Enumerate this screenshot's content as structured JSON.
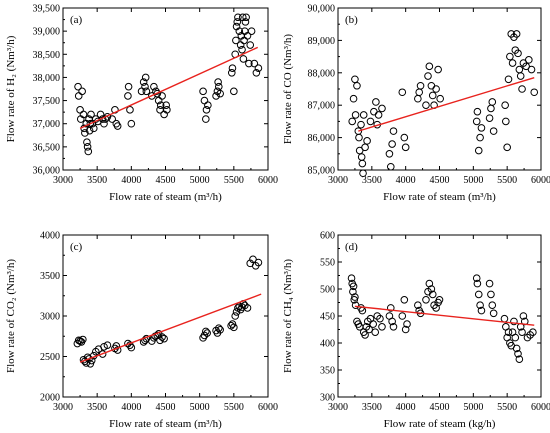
{
  "chart_data": [
    {
      "type": "scatter",
      "panel_label": "(a)",
      "xlabel": "Flow rate of steam (m³/h)",
      "ylabel": "Flow rate of H₂ (Nm³/h)",
      "xlim": [
        3000,
        6000
      ],
      "ylim": [
        36000,
        39500
      ],
      "x_ticks": [
        3000,
        3500,
        4000,
        4500,
        5000,
        5500,
        6000
      ],
      "y_ticks": [
        36000,
        36500,
        37000,
        37500,
        38000,
        38500,
        39000,
        39500
      ],
      "x_tick_labels": [
        "3000",
        "3500",
        "4000",
        "4500",
        "5000",
        "5500",
        "6000"
      ],
      "y_tick_labels": [
        "36,000",
        "36,500",
        "37,000",
        "37,500",
        "38,000",
        "38,500",
        "39,000",
        "39,500"
      ],
      "trend_line": {
        "x": [
          3250,
          5850
        ],
        "y": [
          36900,
          38650
        ],
        "color": "#e8231e"
      },
      "points": {
        "x": [
          3220,
          3230,
          3250,
          3260,
          3280,
          3300,
          3310,
          3320,
          3340,
          3350,
          3360,
          3370,
          3380,
          3390,
          3400,
          3410,
          3430,
          3450,
          3480,
          3510,
          3550,
          3580,
          3600,
          3620,
          3650,
          3720,
          3760,
          3780,
          3800,
          3950,
          3960,
          3980,
          4000,
          4150,
          4180,
          4200,
          4210,
          4220,
          4300,
          4330,
          4360,
          4380,
          4400,
          4420,
          4430,
          4450,
          4480,
          4510,
          4520,
          5050,
          5070,
          5090,
          5100,
          5120,
          5240,
          5260,
          5270,
          5280,
          5300,
          5470,
          5480,
          5500,
          5520,
          5530,
          5540,
          5550,
          5560,
          5580,
          5600,
          5610,
          5620,
          5630,
          5640,
          5650,
          5660,
          5670,
          5680,
          5700,
          5720,
          5740,
          5760,
          5800,
          5830,
          5860
        ],
        "y": [
          37800,
          37600,
          37300,
          37100,
          37700,
          37200,
          36900,
          36800,
          37000,
          36600,
          36500,
          36400,
          37100,
          36850,
          37000,
          37200,
          37000,
          36900,
          37100,
          37050,
          37200,
          37100,
          37000,
          37100,
          37150,
          37100,
          37300,
          37000,
          36950,
          37600,
          37800,
          37300,
          37000,
          37700,
          37900,
          37800,
          38000,
          37700,
          37600,
          37800,
          37700,
          37650,
          37500,
          37300,
          37400,
          37600,
          37200,
          37400,
          37300,
          37700,
          37500,
          37100,
          37300,
          37400,
          37600,
          37700,
          37900,
          37800,
          37650,
          38100,
          38200,
          37700,
          38500,
          38800,
          39100,
          39200,
          39300,
          39000,
          38700,
          38900,
          38600,
          39300,
          38400,
          38800,
          39000,
          39200,
          39300,
          38900,
          38300,
          38700,
          39000,
          38300,
          38100,
          38200
        ]
      }
    },
    {
      "type": "scatter",
      "panel_label": "(b)",
      "xlabel": "Flow rate of steam (m³/h)",
      "ylabel": "Flow rate of CO (Nm³/h)",
      "xlim": [
        3000,
        6000
      ],
      "ylim": [
        85000,
        90000
      ],
      "x_ticks": [
        3000,
        3500,
        4000,
        4500,
        5000,
        5500,
        6000
      ],
      "y_ticks": [
        85000,
        86000,
        87000,
        88000,
        89000,
        90000
      ],
      "x_tick_labels": [
        "3000",
        "3500",
        "4000",
        "4500",
        "5000",
        "5500",
        "6000"
      ],
      "y_tick_labels": [
        "85,000",
        "86,000",
        "87,000",
        "88,000",
        "89,000",
        "90,000"
      ],
      "trend_line": {
        "x": [
          3300,
          5900
        ],
        "y": [
          86200,
          87850
        ],
        "color": "#e8231e"
      },
      "points": {
        "x": [
          3210,
          3230,
          3250,
          3260,
          3280,
          3300,
          3310,
          3320,
          3340,
          3350,
          3360,
          3370,
          3380,
          3400,
          3430,
          3480,
          3530,
          3560,
          3580,
          3600,
          3650,
          3760,
          3780,
          3800,
          3820,
          3950,
          3980,
          4000,
          4180,
          4200,
          4220,
          4300,
          4330,
          4350,
          4380,
          4400,
          4420,
          4450,
          4480,
          4510,
          5050,
          5060,
          5080,
          5100,
          5120,
          5240,
          5260,
          5280,
          5300,
          5470,
          5480,
          5500,
          5520,
          5540,
          5560,
          5580,
          5600,
          5620,
          5640,
          5660,
          5680,
          5700,
          5720,
          5740,
          5780,
          5820,
          5860,
          5900
        ],
        "y": [
          86500,
          87200,
          87800,
          86700,
          87600,
          86200,
          86000,
          85600,
          86400,
          85400,
          85200,
          84900,
          86700,
          85700,
          85900,
          86500,
          86800,
          87100,
          86400,
          86700,
          86900,
          85500,
          85100,
          85800,
          86200,
          87400,
          86000,
          85700,
          87200,
          87400,
          87600,
          87000,
          87900,
          88200,
          87600,
          87300,
          87000,
          87500,
          88100,
          87200,
          86500,
          86800,
          85600,
          86000,
          86300,
          86600,
          86900,
          87100,
          86200,
          87000,
          86500,
          85700,
          87800,
          88500,
          89200,
          88300,
          89100,
          88700,
          89200,
          88600,
          88100,
          87900,
          87500,
          88300,
          88200,
          88400,
          88100,
          87400
        ]
      }
    },
    {
      "type": "scatter",
      "panel_label": "(c)",
      "xlabel": "Flow rate of steam (m³/h)",
      "ylabel": "Flow rate of CO₂ (Nm³/h)",
      "xlim": [
        3000,
        6000
      ],
      "ylim": [
        2000,
        4000
      ],
      "x_ticks": [
        3000,
        3500,
        4000,
        4500,
        5000,
        5500,
        6000
      ],
      "y_ticks": [
        2000,
        2500,
        3000,
        3500,
        4000
      ],
      "x_tick_labels": [
        "3000",
        "3500",
        "4000",
        "4500",
        "5000",
        "5500",
        "6000"
      ],
      "y_tick_labels": [
        "2000",
        "2500",
        "3000",
        "3500",
        "4000"
      ],
      "trend_line": {
        "x": [
          3250,
          5900
        ],
        "y": [
          2430,
          3270
        ],
        "color": "#e8231e"
      },
      "points": {
        "x": [
          3210,
          3230,
          3250,
          3270,
          3290,
          3300,
          3320,
          3340,
          3360,
          3380,
          3400,
          3420,
          3450,
          3480,
          3520,
          3580,
          3600,
          3650,
          3760,
          3780,
          3800,
          3950,
          3980,
          4000,
          4180,
          4200,
          4220,
          4300,
          4330,
          4350,
          4380,
          4400,
          4420,
          4450,
          4480,
          5050,
          5070,
          5090,
          5110,
          5240,
          5260,
          5280,
          5300,
          5460,
          5480,
          5500,
          5520,
          5540,
          5560,
          5580,
          5600,
          5620,
          5640,
          5660,
          5700,
          5740,
          5780,
          5820,
          5860
        ],
        "y": [
          2660,
          2700,
          2690,
          2680,
          2710,
          2460,
          2440,
          2420,
          2490,
          2470,
          2410,
          2450,
          2510,
          2560,
          2590,
          2530,
          2620,
          2640,
          2600,
          2630,
          2580,
          2660,
          2640,
          2610,
          2680,
          2700,
          2720,
          2690,
          2730,
          2750,
          2760,
          2780,
          2700,
          2740,
          2720,
          2730,
          2760,
          2810,
          2790,
          2820,
          2790,
          2850,
          2830,
          2880,
          2900,
          2860,
          3000,
          3050,
          3100,
          3120,
          3080,
          3110,
          3150,
          3130,
          3100,
          3650,
          3700,
          3620,
          3660
        ]
      }
    },
    {
      "type": "scatter",
      "panel_label": "(d)",
      "xlabel": "Flow rate of steam (kg/h)",
      "ylabel": "Flow rate of CH₄ (Nm³/h)",
      "xlim": [
        3000,
        6000
      ],
      "ylim": [
        300,
        600
      ],
      "x_ticks": [
        3000,
        3500,
        4000,
        4500,
        5000,
        5500,
        6000
      ],
      "y_ticks": [
        300,
        350,
        400,
        450,
        500,
        550,
        600
      ],
      "x_tick_labels": [
        "3000",
        "3500",
        "4000",
        "4500",
        "5000",
        "5500",
        "6000"
      ],
      "y_tick_labels": [
        "300",
        "350",
        "400",
        "450",
        "500",
        "550",
        "600"
      ],
      "trend_line": {
        "x": [
          3250,
          5900
        ],
        "y": [
          468,
          433
        ],
        "color": "#e8231e"
      },
      "points": {
        "x": [
          3200,
          3210,
          3220,
          3230,
          3240,
          3250,
          3260,
          3280,
          3300,
          3320,
          3340,
          3360,
          3380,
          3400,
          3420,
          3440,
          3460,
          3480,
          3520,
          3550,
          3580,
          3620,
          3650,
          3760,
          3780,
          3800,
          3820,
          3950,
          3980,
          4000,
          4020,
          4180,
          4200,
          4220,
          4300,
          4330,
          4350,
          4380,
          4400,
          4420,
          4450,
          4480,
          4500,
          5050,
          5060,
          5080,
          5100,
          5120,
          5240,
          5260,
          5280,
          5300,
          5460,
          5480,
          5500,
          5520,
          5540,
          5560,
          5580,
          5600,
          5620,
          5640,
          5660,
          5680,
          5700,
          5720,
          5740,
          5760,
          5800,
          5840,
          5880
        ],
        "y": [
          520,
          510,
          495,
          505,
          480,
          485,
          470,
          440,
          435,
          430,
          465,
          460,
          420,
          415,
          430,
          440,
          425,
          445,
          435,
          420,
          450,
          445,
          430,
          450,
          465,
          440,
          430,
          450,
          480,
          425,
          435,
          470,
          460,
          455,
          480,
          495,
          510,
          500,
          490,
          470,
          465,
          475,
          480,
          520,
          510,
          490,
          470,
          460,
          510,
          490,
          470,
          455,
          445,
          430,
          410,
          420,
          400,
          395,
          420,
          440,
          410,
          390,
          380,
          370,
          430,
          420,
          450,
          440,
          410,
          415,
          420
        ]
      }
    }
  ]
}
